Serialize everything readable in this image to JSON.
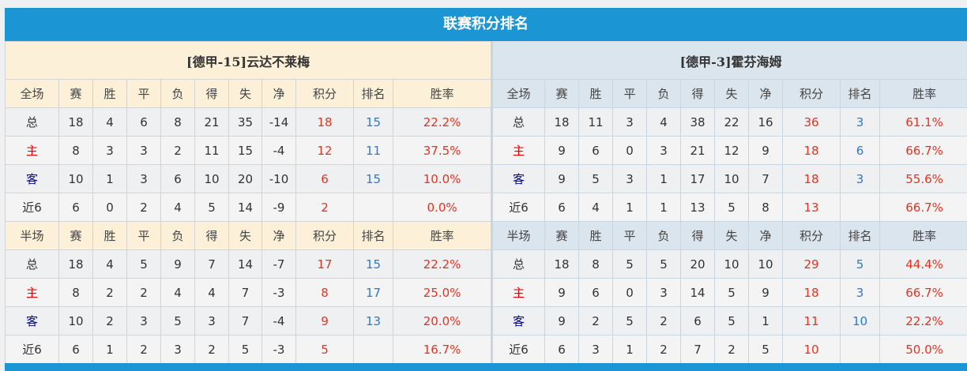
{
  "title": "联赛积分排名",
  "columns_full": [
    "全场",
    "赛",
    "胜",
    "平",
    "负",
    "得",
    "失",
    "净",
    "积分",
    "排名",
    "胜率"
  ],
  "columns_half": [
    "半场",
    "赛",
    "胜",
    "平",
    "负",
    "得",
    "失",
    "净",
    "积分",
    "排名",
    "胜率"
  ],
  "teams": [
    {
      "name": "[德甲-15]云达不莱梅",
      "full": [
        [
          "总",
          "18",
          "4",
          "6",
          "8",
          "21",
          "35",
          "-14",
          "18",
          "15",
          "22.2%"
        ],
        [
          "主",
          "8",
          "3",
          "3",
          "2",
          "11",
          "15",
          "-4",
          "12",
          "11",
          "37.5%"
        ],
        [
          "客",
          "10",
          "1",
          "3",
          "6",
          "10",
          "20",
          "-10",
          "6",
          "15",
          "10.0%"
        ],
        [
          "近6",
          "6",
          "0",
          "2",
          "4",
          "5",
          "14",
          "-9",
          "2",
          "",
          "0.0%"
        ]
      ],
      "half": [
        [
          "总",
          "18",
          "4",
          "5",
          "9",
          "7",
          "14",
          "-7",
          "17",
          "15",
          "22.2%"
        ],
        [
          "主",
          "8",
          "2",
          "2",
          "4",
          "4",
          "7",
          "-3",
          "8",
          "17",
          "25.0%"
        ],
        [
          "客",
          "10",
          "2",
          "3",
          "5",
          "3",
          "7",
          "-4",
          "9",
          "13",
          "20.0%"
        ],
        [
          "近6",
          "6",
          "1",
          "2",
          "3",
          "2",
          "5",
          "-3",
          "5",
          "",
          "16.7%"
        ]
      ]
    },
    {
      "name": "[德甲-3]霍芬海姆",
      "full": [
        [
          "总",
          "18",
          "11",
          "3",
          "4",
          "38",
          "22",
          "16",
          "36",
          "3",
          "61.1%"
        ],
        [
          "主",
          "9",
          "6",
          "0",
          "3",
          "21",
          "12",
          "9",
          "18",
          "6",
          "66.7%"
        ],
        [
          "客",
          "9",
          "5",
          "3",
          "1",
          "17",
          "10",
          "7",
          "18",
          "3",
          "55.6%"
        ],
        [
          "近6",
          "6",
          "4",
          "1",
          "1",
          "13",
          "5",
          "8",
          "13",
          "",
          "66.7%"
        ]
      ],
      "half": [
        [
          "总",
          "18",
          "8",
          "5",
          "5",
          "20",
          "10",
          "10",
          "29",
          "5",
          "44.4%"
        ],
        [
          "主",
          "9",
          "6",
          "0",
          "3",
          "14",
          "5",
          "9",
          "18",
          "3",
          "66.7%"
        ],
        [
          "客",
          "9",
          "2",
          "5",
          "2",
          "6",
          "5",
          "1",
          "11",
          "10",
          "22.2%"
        ],
        [
          "近6",
          "6",
          "3",
          "1",
          "2",
          "7",
          "2",
          "5",
          "10",
          "",
          "50.0%"
        ]
      ]
    }
  ],
  "colors": {
    "header": "#1b95d3",
    "points": "#e8321f",
    "rank": "#2a7ad0",
    "home": "#ee0000",
    "away": "#0000aa"
  }
}
